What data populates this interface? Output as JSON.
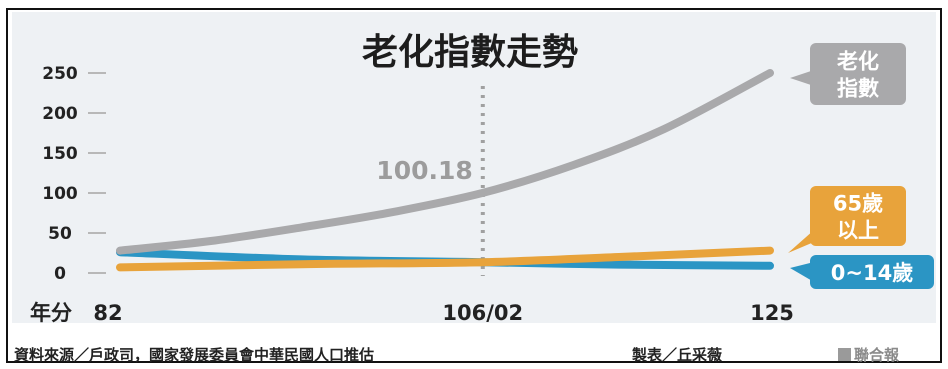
{
  "chart_data": {
    "type": "line",
    "title": "老化指數走勢",
    "x_axis_label": "年分",
    "x_tick_labels": [
      "82",
      "106/02",
      "125"
    ],
    "x": [
      82,
      106,
      125
    ],
    "ylim": [
      0,
      250
    ],
    "y_ticks": [
      0,
      50,
      100,
      150,
      200,
      250
    ],
    "series": [
      {
        "name": "老化指數",
        "color": "#a9a9ab",
        "values": [
          [
            82,
            28
          ],
          [
            88,
            40
          ],
          [
            94,
            57
          ],
          [
            100,
            76
          ],
          [
            106,
            100.18
          ],
          [
            112,
            135
          ],
          [
            118,
            180
          ],
          [
            125,
            250
          ]
        ]
      },
      {
        "name": "65歲以上",
        "color": "#e8a33b",
        "values": [
          [
            82,
            7
          ],
          [
            94,
            11
          ],
          [
            106,
            13.5
          ],
          [
            115,
            20
          ],
          [
            125,
            28
          ]
        ]
      },
      {
        "name": "0~14歲",
        "color": "#2b95c4",
        "values": [
          [
            82,
            26
          ],
          [
            94,
            17
          ],
          [
            106,
            13.5
          ],
          [
            115,
            10.5
          ],
          [
            125,
            9
          ]
        ]
      }
    ],
    "annotations": [
      {
        "text": "100.18",
        "x": 106,
        "y": 100.18
      }
    ],
    "grid": false
  },
  "labels": {
    "aging": [
      "老化",
      "指數"
    ],
    "elderly": [
      "65歲",
      "以上"
    ],
    "young": [
      "0~14歲"
    ]
  },
  "footer": {
    "source": "資料來源／戶政司，國家發展委員會中華民國人口推估",
    "credit": "製表／丘采薇",
    "watermark": "聯合報"
  }
}
